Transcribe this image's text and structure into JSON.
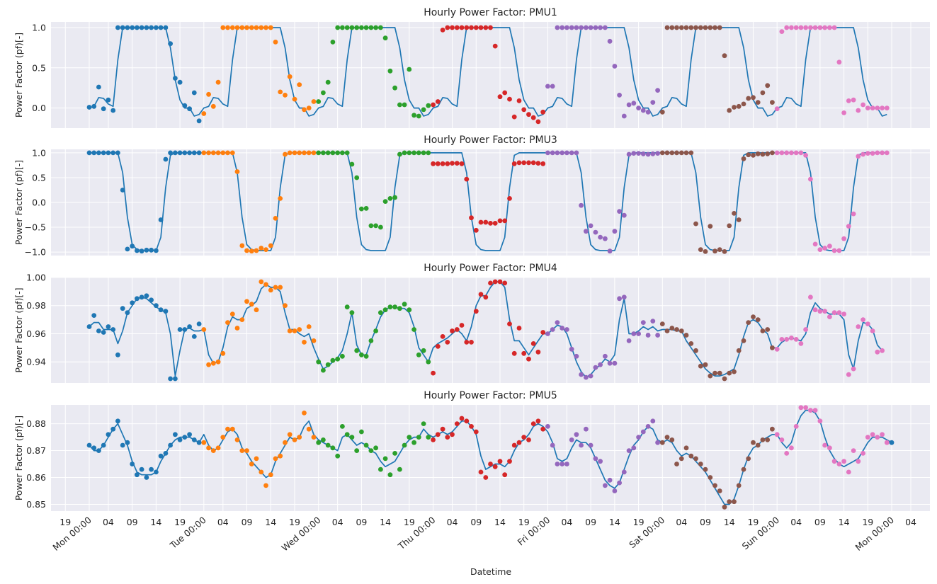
{
  "figure": {
    "xlabel": "Datetime"
  },
  "colors": {
    "background": "#eaeaf2",
    "grid": "#ffffff",
    "line": "#1f77b4",
    "days": [
      "#1f77b4",
      "#ff7f0e",
      "#2ca02c",
      "#d62728",
      "#9467bd",
      "#8c564b",
      "#e377c2"
    ]
  },
  "x_axis": {
    "unit": "hour from Mon 00:00",
    "tick_values": [
      -5,
      0,
      4,
      9,
      14,
      19,
      24,
      28,
      33,
      38,
      43,
      48,
      52,
      57,
      62,
      67,
      72,
      76,
      81,
      86,
      91,
      96,
      100,
      105,
      110,
      115,
      120,
      124,
      129,
      134,
      139,
      144,
      148,
      153,
      158,
      163,
      168,
      172
    ],
    "tick_labels": [
      "19",
      "Mon 00:00",
      "04",
      "09",
      "14",
      "19",
      "Tue 00:00",
      "04",
      "09",
      "14",
      "19",
      "Wed 00:00",
      "04",
      "09",
      "14",
      "19",
      "Thu 00:00",
      "04",
      "09",
      "14",
      "19",
      "Fri 00:00",
      "04",
      "09",
      "14",
      "19",
      "Sat 00:00",
      "04",
      "09",
      "14",
      "19",
      "Sun 00:00",
      "04",
      "09",
      "14",
      "19",
      "Mon 00:00",
      "04"
    ],
    "rotated": [
      false,
      true,
      false,
      false,
      false,
      false,
      true,
      false,
      false,
      false,
      false,
      true,
      false,
      false,
      false,
      false,
      true,
      false,
      false,
      false,
      false,
      true,
      false,
      false,
      false,
      false,
      true,
      false,
      false,
      false,
      false,
      true,
      false,
      false,
      false,
      false,
      true,
      false
    ],
    "xlim": [
      -8,
      176
    ]
  },
  "chart_data": [
    {
      "type": "line+scatter",
      "title": "Hourly Power Factor: PMU1",
      "ylabel": "Power Factor (pf)[-]",
      "ylim": [
        -0.25,
        1.07
      ],
      "yticks": [
        0.0,
        0.5,
        1.0
      ],
      "ytick_labels": [
        "0.0",
        "0.5",
        "1.0"
      ],
      "daily_profile": [
        0.0,
        0.02,
        0.13,
        0.12,
        0.05,
        0.02,
        0.6,
        1.0,
        1.0,
        1.0,
        1.0,
        1.0,
        1.0,
        1.0,
        1.0,
        1.0,
        1.0,
        0.75,
        0.35,
        0.1,
        0.0,
        0.0,
        -0.1,
        -0.08
      ],
      "points": [
        0.01,
        0.02,
        0.26,
        -0.01,
        0.1,
        -0.03,
        1.0,
        1.0,
        1.0,
        1.0,
        1.0,
        1.0,
        1.0,
        1.0,
        1.0,
        1.0,
        1.0,
        0.8,
        0.37,
        0.32,
        0.03,
        -0.01,
        0.19,
        -0.16,
        -0.07,
        0.17,
        0.02,
        0.32,
        1.0,
        1.0,
        1.0,
        1.0,
        1.0,
        1.0,
        1.0,
        1.0,
        1.0,
        1.0,
        1.0,
        0.82,
        0.2,
        0.16,
        0.39,
        0.11,
        0.29,
        -0.02,
        0.0,
        0.08,
        0.08,
        0.19,
        0.32,
        0.82,
        1.0,
        1.0,
        1.0,
        1.0,
        1.0,
        1.0,
        1.0,
        1.0,
        1.0,
        1.0,
        0.87,
        0.46,
        0.25,
        0.04,
        0.04,
        0.48,
        -0.09,
        -0.1,
        -0.02,
        0.03,
        0.04,
        0.08,
        0.97,
        1.0,
        1.0,
        1.0,
        1.0,
        1.0,
        1.0,
        1.0,
        1.0,
        1.0,
        1.0,
        0.77,
        0.14,
        0.19,
        0.11,
        -0.11,
        0.09,
        -0.02,
        -0.08,
        -0.12,
        -0.17,
        -0.05,
        0.27,
        0.27,
        1.0,
        1.0,
        1.0,
        1.0,
        1.0,
        1.0,
        1.0,
        1.0,
        1.0,
        1.0,
        1.0,
        0.83,
        0.52,
        0.16,
        -0.1,
        0.04,
        0.06,
        0.0,
        -0.03,
        -0.05,
        0.07,
        0.22,
        -0.05,
        1.0,
        1.0,
        1.0,
        1.0,
        1.0,
        1.0,
        1.0,
        1.0,
        1.0,
        1.0,
        1.0,
        1.0,
        0.65,
        -0.03,
        0.01,
        0.02,
        0.05,
        0.12,
        0.13,
        0.07,
        0.19,
        0.28,
        0.07,
        -0.01,
        0.95,
        1.0,
        1.0,
        1.0,
        1.0,
        1.0,
        1.0,
        1.0,
        1.0,
        1.0,
        1.0,
        1.0,
        0.57,
        -0.06,
        0.09,
        0.1,
        -0.03,
        0.04,
        0.0,
        0.0,
        0.0,
        0.0,
        0.0
      ]
    },
    {
      "type": "line+scatter",
      "title": "Hourly Power Factor: PMU3",
      "ylabel": "Power Factor (pf)[-]",
      "ylim": [
        -1.07,
        1.07
      ],
      "yticks": [
        -1.0,
        -0.5,
        0.0,
        0.5,
        1.0
      ],
      "ytick_labels": [
        "−1.0",
        "−0.5",
        "0.0",
        "0.5",
        "1.0"
      ],
      "daily_profile": [
        1.0,
        1.0,
        1.0,
        1.0,
        1.0,
        1.0,
        1.0,
        0.6,
        -0.3,
        -0.85,
        -0.95,
        -0.97,
        -0.97,
        -0.97,
        -0.97,
        -0.7,
        0.3,
        0.95,
        1.0,
        1.0,
        1.0,
        1.0,
        1.0,
        1.0
      ],
      "points": [
        1.0,
        1.0,
        1.0,
        1.0,
        1.0,
        1.0,
        1.0,
        0.25,
        -0.94,
        -0.88,
        -0.97,
        -0.98,
        -0.96,
        -0.96,
        -0.97,
        -0.35,
        0.87,
        1.0,
        1.0,
        1.0,
        1.0,
        1.0,
        1.0,
        1.0,
        1.0,
        1.0,
        1.0,
        1.0,
        1.0,
        1.0,
        1.0,
        0.62,
        -0.87,
        -0.97,
        -0.98,
        -0.97,
        -0.92,
        -0.95,
        -0.87,
        -0.32,
        0.08,
        0.97,
        1.0,
        1.0,
        1.0,
        1.0,
        1.0,
        1.0,
        1.0,
        1.0,
        1.0,
        1.0,
        1.0,
        1.0,
        1.0,
        0.77,
        0.5,
        -0.13,
        -0.12,
        -0.47,
        -0.47,
        -0.5,
        0.02,
        0.08,
        0.1,
        0.97,
        1.0,
        1.0,
        1.0,
        1.0,
        1.0,
        1.0,
        0.78,
        0.78,
        0.78,
        0.78,
        0.79,
        0.79,
        0.78,
        0.47,
        -0.31,
        -0.56,
        -0.4,
        -0.4,
        -0.42,
        -0.42,
        -0.37,
        -0.37,
        0.08,
        0.78,
        0.8,
        0.8,
        0.8,
        0.8,
        0.79,
        0.78,
        1.0,
        1.0,
        1.0,
        1.0,
        1.0,
        1.0,
        1.0,
        -0.06,
        -0.58,
        -0.47,
        -0.6,
        -0.7,
        -0.73,
        -0.98,
        -0.58,
        -0.18,
        -0.26,
        0.97,
        0.99,
        0.99,
        0.98,
        0.97,
        0.98,
        0.99,
        1.0,
        1.0,
        1.0,
        1.0,
        1.0,
        1.0,
        1.0,
        -0.43,
        -0.95,
        -0.99,
        -0.48,
        -0.98,
        -0.95,
        -0.99,
        -0.47,
        -0.22,
        -0.35,
        0.88,
        0.96,
        0.95,
        0.98,
        0.97,
        0.98,
        1.0,
        1.0,
        1.0,
        1.0,
        1.0,
        1.0,
        1.0,
        0.95,
        0.47,
        -0.84,
        -0.95,
        -0.92,
        -0.88,
        -0.97,
        -0.97,
        -0.73,
        -0.48,
        -0.23,
        0.93,
        0.97,
        0.99,
        0.99,
        1.0,
        1.0,
        1.0
      ]
    },
    {
      "type": "line+scatter",
      "title": "Hourly Power Factor: PMU4",
      "ylabel": "Power Factor (pf)[-]",
      "ylim": [
        0.925,
        1.0
      ],
      "yticks": [
        0.94,
        0.96,
        0.98,
        1.0
      ],
      "ytick_labels": [
        "0.94",
        "0.96",
        "0.98",
        "1.00"
      ],
      "points": [
        0.965,
        0.973,
        0.962,
        0.961,
        0.965,
        0.963,
        0.945,
        0.978,
        0.975,
        0.982,
        0.985,
        0.986,
        0.987,
        0.984,
        0.98,
        0.977,
        0.976,
        0.928,
        0.928,
        0.963,
        0.963,
        0.965,
        0.958,
        0.967,
        0.963,
        0.938,
        0.939,
        0.94,
        0.946,
        0.968,
        0.974,
        0.964,
        0.97,
        0.983,
        0.981,
        0.977,
        0.997,
        0.995,
        0.991,
        0.993,
        0.993,
        0.98,
        0.962,
        0.962,
        0.963,
        0.954,
        0.965,
        0.955,
        0.94,
        0.934,
        0.938,
        0.941,
        0.942,
        0.944,
        0.979,
        0.975,
        0.948,
        0.945,
        0.944,
        0.955,
        0.962,
        0.975,
        0.977,
        0.979,
        0.979,
        0.978,
        0.981,
        0.977,
        0.963,
        0.945,
        0.948,
        0.94,
        0.932,
        0.951,
        0.958,
        0.954,
        0.962,
        0.963,
        0.966,
        0.954,
        0.954,
        0.976,
        0.988,
        0.986,
        0.996,
        0.997,
        0.997,
        0.996,
        0.967,
        0.946,
        0.964,
        0.946,
        0.942,
        0.953,
        0.947,
        0.961,
        0.96,
        0.963,
        0.968,
        0.964,
        0.963,
        0.949,
        0.944,
        0.931,
        0.929,
        0.93,
        0.936,
        0.938,
        0.944,
        0.939,
        0.939,
        0.985,
        0.986,
        0.955,
        0.96,
        0.96,
        0.968,
        0.959,
        0.969,
        0.959,
        0.967,
        0.962,
        0.964,
        0.963,
        0.962,
        0.959,
        0.953,
        0.948,
        0.937,
        0.938,
        0.93,
        0.932,
        0.932,
        0.928,
        0.932,
        0.933,
        0.948,
        0.955,
        0.968,
        0.972,
        0.97,
        0.962,
        0.963,
        0.95,
        0.949,
        0.956,
        0.956,
        0.957,
        0.956,
        0.953,
        0.963,
        0.986,
        0.977,
        0.976,
        0.976,
        0.972,
        0.975,
        0.975,
        0.974,
        0.931,
        0.935,
        0.965,
        0.97,
        0.967,
        0.962,
        0.947,
        0.948
      ],
      "line_values": [
        0.965,
        0.968,
        0.968,
        0.963,
        0.963,
        0.963,
        0.953,
        0.962,
        0.975,
        0.98,
        0.985,
        0.986,
        0.985,
        0.982,
        0.979,
        0.977,
        0.975,
        0.96,
        0.93,
        0.948,
        0.963,
        0.964,
        0.962,
        0.962,
        0.963,
        0.945,
        0.939,
        0.94,
        0.95,
        0.965,
        0.972,
        0.97,
        0.97,
        0.978,
        0.98,
        0.983,
        0.992,
        0.995,
        0.993,
        0.993,
        0.99,
        0.975,
        0.963,
        0.963,
        0.96,
        0.958,
        0.96,
        0.95,
        0.942,
        0.935,
        0.937,
        0.94,
        0.943,
        0.948,
        0.96,
        0.975,
        0.952,
        0.945,
        0.945,
        0.955,
        0.963,
        0.972,
        0.977,
        0.979,
        0.979,
        0.978,
        0.978,
        0.975,
        0.965,
        0.95,
        0.945,
        0.94,
        0.95,
        0.953,
        0.955,
        0.957,
        0.96,
        0.963,
        0.96,
        0.955,
        0.965,
        0.98,
        0.987,
        0.987,
        0.993,
        0.997,
        0.997,
        0.993,
        0.97,
        0.955,
        0.955,
        0.95,
        0.945,
        0.95,
        0.955,
        0.96,
        0.96,
        0.963,
        0.966,
        0.965,
        0.96,
        0.95,
        0.94,
        0.933,
        0.929,
        0.931,
        0.935,
        0.938,
        0.942,
        0.94,
        0.945,
        0.97,
        0.985,
        0.96,
        0.96,
        0.962,
        0.965,
        0.963,
        0.965,
        0.962,
        0.963,
        0.963,
        0.963,
        0.962,
        0.962,
        0.955,
        0.95,
        0.945,
        0.94,
        0.935,
        0.932,
        0.93,
        0.93,
        0.931,
        0.933,
        0.935,
        0.945,
        0.958,
        0.968,
        0.97,
        0.968,
        0.963,
        0.96,
        0.95,
        0.95,
        0.954,
        0.956,
        0.957,
        0.956,
        0.955,
        0.96,
        0.975,
        0.982,
        0.978,
        0.976,
        0.974,
        0.974,
        0.974,
        0.97,
        0.945,
        0.935,
        0.955,
        0.968,
        0.967,
        0.963,
        0.952,
        0.948
      ]
    },
    {
      "type": "line+scatter",
      "title": "Hourly Power Factor: PMU5",
      "ylabel": "Power Factor (pf)[-]",
      "ylim": [
        0.8475,
        0.887
      ],
      "yticks": [
        0.85,
        0.86,
        0.87,
        0.88
      ],
      "ytick_labels": [
        "0.85",
        "0.86",
        "0.87",
        "0.88"
      ],
      "points": [
        0.872,
        0.871,
        0.87,
        0.872,
        0.876,
        0.878,
        0.881,
        0.872,
        0.873,
        0.865,
        0.861,
        0.863,
        0.86,
        0.863,
        0.862,
        0.868,
        0.869,
        0.872,
        0.876,
        0.874,
        0.875,
        0.876,
        0.874,
        0.873,
        0.873,
        0.871,
        0.87,
        0.871,
        0.875,
        0.878,
        0.878,
        0.874,
        0.87,
        0.87,
        0.865,
        0.867,
        0.862,
        0.857,
        0.861,
        0.867,
        0.868,
        0.873,
        0.876,
        0.874,
        0.875,
        0.884,
        0.878,
        0.875,
        0.873,
        0.874,
        0.872,
        0.871,
        0.868,
        0.879,
        0.876,
        0.875,
        0.87,
        0.877,
        0.872,
        0.87,
        0.871,
        0.863,
        0.867,
        0.861,
        0.869,
        0.863,
        0.872,
        0.875,
        0.873,
        0.875,
        0.88,
        0.875,
        0.874,
        0.876,
        0.878,
        0.875,
        0.876,
        0.88,
        0.882,
        0.881,
        0.879,
        0.877,
        0.862,
        0.86,
        0.865,
        0.864,
        0.866,
        0.861,
        0.866,
        0.872,
        0.873,
        0.875,
        0.874,
        0.88,
        0.881,
        0.878,
        0.879,
        0.872,
        0.865,
        0.865,
        0.865,
        0.874,
        0.876,
        0.872,
        0.878,
        0.872,
        0.867,
        0.866,
        0.857,
        0.859,
        0.855,
        0.858,
        0.862,
        0.87,
        0.871,
        0.875,
        0.877,
        0.879,
        0.881,
        0.873,
        0.873,
        0.875,
        0.874,
        0.865,
        0.867,
        0.871,
        0.868,
        0.867,
        0.865,
        0.863,
        0.86,
        0.857,
        0.855,
        0.849,
        0.851,
        0.851,
        0.857,
        0.863,
        0.867,
        0.873,
        0.872,
        0.874,
        0.874,
        0.878,
        0.876,
        0.874,
        0.869,
        0.871,
        0.879,
        0.886,
        0.886,
        0.885,
        0.885,
        0.881,
        0.872,
        0.871,
        0.866,
        0.865,
        0.866,
        0.862,
        0.87,
        0.866,
        0.869,
        0.875,
        0.876,
        0.875,
        0.876,
        0.873,
        0.873
      ],
      "line_values": [
        0.872,
        0.87,
        0.87,
        0.872,
        0.875,
        0.878,
        0.88,
        0.876,
        0.872,
        0.866,
        0.862,
        0.861,
        0.861,
        0.861,
        0.862,
        0.866,
        0.869,
        0.872,
        0.874,
        0.875,
        0.875,
        0.875,
        0.874,
        0.873,
        0.876,
        0.872,
        0.87,
        0.871,
        0.874,
        0.877,
        0.878,
        0.876,
        0.871,
        0.869,
        0.866,
        0.864,
        0.862,
        0.86,
        0.861,
        0.866,
        0.869,
        0.872,
        0.875,
        0.874,
        0.875,
        0.879,
        0.881,
        0.876,
        0.874,
        0.873,
        0.872,
        0.871,
        0.87,
        0.875,
        0.876,
        0.874,
        0.872,
        0.873,
        0.872,
        0.87,
        0.869,
        0.866,
        0.864,
        0.865,
        0.866,
        0.869,
        0.872,
        0.874,
        0.875,
        0.875,
        0.878,
        0.876,
        0.875,
        0.876,
        0.877,
        0.876,
        0.877,
        0.879,
        0.881,
        0.881,
        0.879,
        0.876,
        0.868,
        0.863,
        0.864,
        0.865,
        0.865,
        0.864,
        0.866,
        0.87,
        0.873,
        0.874,
        0.876,
        0.879,
        0.88,
        0.879,
        0.877,
        0.873,
        0.867,
        0.866,
        0.867,
        0.871,
        0.874,
        0.873,
        0.873,
        0.871,
        0.867,
        0.863,
        0.859,
        0.857,
        0.856,
        0.858,
        0.863,
        0.868,
        0.872,
        0.874,
        0.877,
        0.879,
        0.878,
        0.874,
        0.873,
        0.874,
        0.873,
        0.87,
        0.868,
        0.869,
        0.868,
        0.866,
        0.864,
        0.862,
        0.859,
        0.856,
        0.853,
        0.85,
        0.85,
        0.852,
        0.857,
        0.863,
        0.868,
        0.871,
        0.872,
        0.874,
        0.875,
        0.876,
        0.876,
        0.873,
        0.871,
        0.873,
        0.879,
        0.883,
        0.885,
        0.885,
        0.884,
        0.881,
        0.875,
        0.87,
        0.867,
        0.865,
        0.864,
        0.865,
        0.866,
        0.867,
        0.87,
        0.873,
        0.875,
        0.875,
        0.875,
        0.874,
        0.873
      ]
    }
  ]
}
